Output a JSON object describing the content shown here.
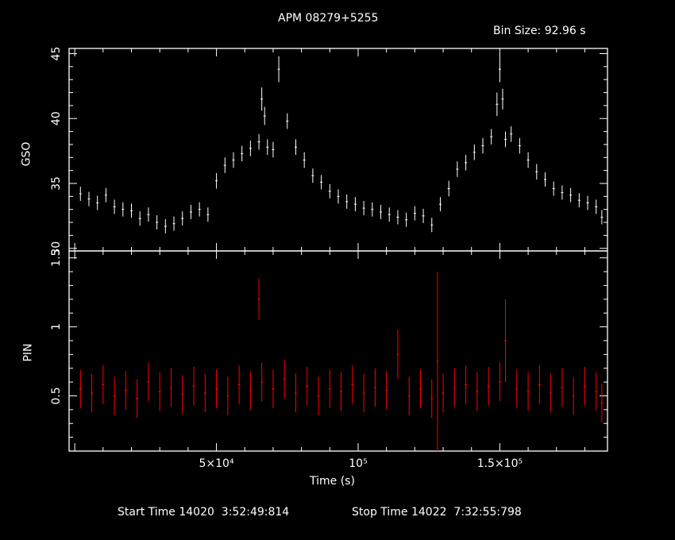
{
  "chart_data": [
    {
      "type": "scatter",
      "panel": "top",
      "title": "APM 08279+5255",
      "subtitle": "Bin Size: 92.96 s",
      "ylabel": "GSO",
      "ylim": [
        29.8,
        45.4
      ],
      "xlim": [
        -2000,
        188000
      ],
      "yticks": [
        30,
        35,
        40,
        45
      ],
      "ytick_labels": [
        "30",
        "35",
        "40",
        "45"
      ],
      "color": "#ffffff",
      "series": [
        {
          "x": [
            2000,
            5000,
            8000,
            11000,
            14000,
            17000,
            20000,
            23000,
            26000,
            29000,
            32000,
            35000,
            38000,
            41000,
            44000,
            47000,
            50000,
            53000,
            56000,
            59000,
            62000,
            65000,
            66000,
            67000,
            68000,
            70000,
            72000,
            75000,
            78000,
            81000,
            84000,
            87000,
            90000,
            93000,
            96000,
            99000,
            102000,
            105000,
            108000,
            111000,
            114000,
            117000,
            120000,
            123000,
            126000,
            129000,
            132000,
            135000,
            138000,
            141000,
            144000,
            147000,
            149000,
            150000,
            151000,
            152000,
            154000,
            157000,
            160000,
            163000,
            166000,
            169000,
            172000,
            175000,
            178000,
            181000,
            184000,
            186000
          ],
          "y": [
            34.2,
            33.8,
            33.5,
            34.1,
            33.2,
            33.0,
            32.9,
            32.3,
            32.6,
            32.0,
            31.7,
            31.9,
            32.3,
            32.8,
            33.0,
            32.6,
            35.2,
            36.4,
            36.8,
            37.3,
            37.7,
            38.2,
            41.5,
            40.2,
            37.8,
            37.6,
            43.8,
            39.8,
            37.8,
            36.8,
            35.6,
            35.1,
            34.4,
            34.0,
            33.6,
            33.4,
            33.1,
            33.0,
            32.8,
            32.6,
            32.4,
            32.2,
            32.7,
            32.5,
            31.8,
            33.4,
            34.6,
            36.1,
            36.6,
            37.4,
            37.9,
            38.6,
            41.1,
            43.8,
            41.5,
            38.4,
            38.8,
            37.9,
            36.8,
            35.9,
            35.3,
            34.6,
            34.3,
            34.1,
            33.7,
            33.5,
            33.2,
            32.4
          ],
          "err": [
            0.55,
            0.55,
            0.55,
            0.55,
            0.55,
            0.55,
            0.55,
            0.55,
            0.55,
            0.55,
            0.55,
            0.55,
            0.55,
            0.55,
            0.55,
            0.55,
            0.6,
            0.6,
            0.6,
            0.6,
            0.6,
            0.6,
            0.9,
            0.7,
            0.6,
            0.6,
            1.0,
            0.6,
            0.6,
            0.6,
            0.55,
            0.55,
            0.55,
            0.55,
            0.55,
            0.55,
            0.55,
            0.55,
            0.55,
            0.55,
            0.55,
            0.55,
            0.55,
            0.55,
            0.55,
            0.55,
            0.6,
            0.6,
            0.6,
            0.6,
            0.6,
            0.6,
            0.9,
            1.0,
            0.8,
            0.6,
            0.6,
            0.6,
            0.6,
            0.6,
            0.55,
            0.55,
            0.55,
            0.55,
            0.55,
            0.55,
            0.55,
            0.55
          ]
        }
      ]
    },
    {
      "type": "scatter",
      "panel": "bottom",
      "xlabel": "Time (s)",
      "ylabel": "PIN",
      "ylim": [
        0.1,
        1.55
      ],
      "xlim": [
        -2000,
        188000
      ],
      "yticks": [
        0.5,
        1,
        1.5
      ],
      "ytick_labels": [
        "0.5",
        "1",
        "1.5"
      ],
      "xticks": [
        50000,
        100000,
        150000
      ],
      "xtick_labels": [
        "5×10⁴",
        "10⁵",
        "1.5×10⁵"
      ],
      "color": "#ff0000",
      "series": [
        {
          "x": [
            2000,
            6000,
            10000,
            14000,
            18000,
            22000,
            26000,
            30000,
            34000,
            38000,
            42000,
            46000,
            50000,
            54000,
            58000,
            62000,
            65000,
            66000,
            70000,
            74000,
            78000,
            82000,
            86000,
            90000,
            94000,
            98000,
            102000,
            106000,
            110000,
            114000,
            118000,
            122000,
            126000,
            128000,
            130000,
            134000,
            138000,
            142000,
            146000,
            150000,
            152000,
            156000,
            160000,
            164000,
            168000,
            172000,
            176000,
            180000,
            184000,
            186000
          ],
          "y": [
            0.55,
            0.52,
            0.58,
            0.5,
            0.54,
            0.48,
            0.6,
            0.53,
            0.56,
            0.51,
            0.57,
            0.52,
            0.55,
            0.5,
            0.58,
            0.54,
            1.2,
            0.6,
            0.55,
            0.62,
            0.52,
            0.57,
            0.5,
            0.55,
            0.53,
            0.58,
            0.52,
            0.56,
            0.54,
            0.8,
            0.5,
            0.55,
            0.48,
            0.75,
            0.52,
            0.56,
            0.58,
            0.53,
            0.57,
            0.6,
            0.9,
            0.55,
            0.53,
            0.58,
            0.52,
            0.56,
            0.5,
            0.57,
            0.53,
            0.45
          ],
          "err": [
            0.14,
            0.14,
            0.14,
            0.14,
            0.14,
            0.14,
            0.14,
            0.14,
            0.14,
            0.14,
            0.14,
            0.14,
            0.14,
            0.14,
            0.14,
            0.14,
            0.15,
            0.14,
            0.14,
            0.14,
            0.14,
            0.14,
            0.14,
            0.14,
            0.14,
            0.14,
            0.14,
            0.14,
            0.14,
            0.18,
            0.14,
            0.14,
            0.14,
            0.65,
            0.14,
            0.14,
            0.14,
            0.14,
            0.14,
            0.14,
            0.3,
            0.14,
            0.14,
            0.14,
            0.14,
            0.14,
            0.14,
            0.14,
            0.14,
            0.14
          ]
        }
      ]
    }
  ],
  "footer": {
    "start": "Start Time 14020  3:52:49:814",
    "stop": "Stop Time 14022  7:32:55:798"
  }
}
